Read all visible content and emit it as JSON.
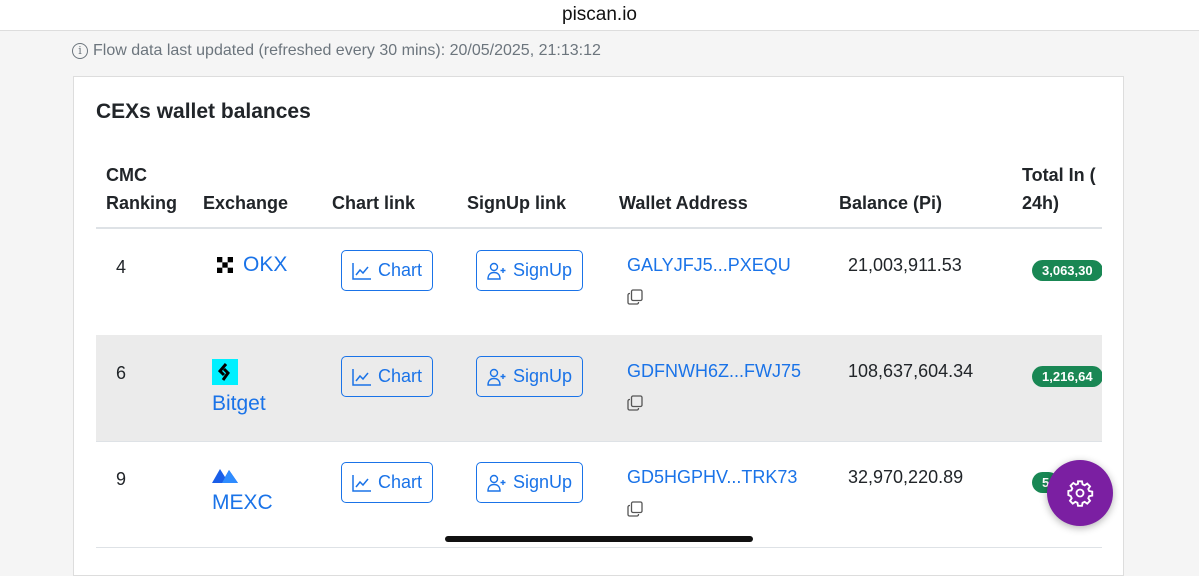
{
  "browser": {
    "domain": "piscan.io"
  },
  "info": {
    "text": "Flow data last updated (refreshed every 30 mins): 20/05/2025, 21:13:12",
    "icon": "info-icon"
  },
  "card": {
    "title": "CEXs wallet balances"
  },
  "table": {
    "headers": {
      "rank_1": "CMC",
      "rank_2": "Ranking",
      "exchange": "Exchange",
      "chart": "Chart link",
      "signup": "SignUp link",
      "wallet": "Wallet Address",
      "balance": "Balance (Pi)",
      "total_in_1": "Total In (",
      "total_in_2": "24h)"
    },
    "rows": [
      {
        "rank": "4",
        "exchange": "OKX",
        "chart": "Chart",
        "signup": "SignUp",
        "wallet": "GALYJFJ5...PXEQU",
        "balance": "21,003,911.53",
        "total_in": "3,063,30"
      },
      {
        "rank": "6",
        "exchange": "Bitget",
        "chart": "Chart",
        "signup": "SignUp",
        "wallet": "GDFNWH6Z...FWJ75",
        "balance": "108,637,604.34",
        "total_in": "1,216,64"
      },
      {
        "rank": "9",
        "exchange": "MEXC",
        "chart": "Chart",
        "signup": "SignUp",
        "wallet": "GD5HGPHV...TRK73",
        "balance": "32,970,220.89",
        "total_in": "5"
      }
    ]
  },
  "colors": {
    "link": "#1a73e8",
    "badge": "#198754",
    "fab": "#7b1fa2",
    "bitget": "#00f0ff"
  }
}
